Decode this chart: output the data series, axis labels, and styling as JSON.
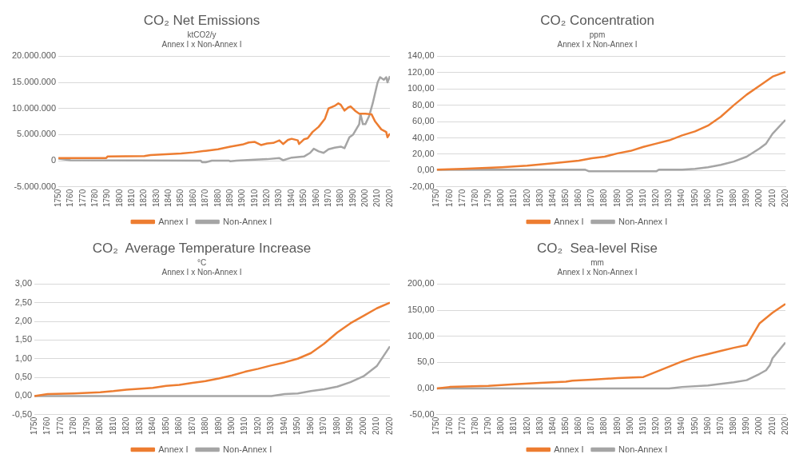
{
  "chart_data": [
    {
      "type": "line",
      "title": "CO₂ Net Emissions",
      "subtitle": "ktCO2/y",
      "annotations": [
        "Annex I x Non-Annex I"
      ],
      "xlim": [
        1750,
        2020
      ],
      "xticks": [
        1750,
        1760,
        1770,
        1780,
        1790,
        1800,
        1810,
        1820,
        1830,
        1840,
        1850,
        1860,
        1870,
        1880,
        1890,
        1900,
        1910,
        1920,
        1930,
        1940,
        1950,
        1960,
        1970,
        1980,
        1990,
        2000,
        2010,
        2020
      ],
      "ylim": [
        -5000000,
        20000000
      ],
      "yticks": [
        {
          "value": -5000000,
          "label": "-5.000.000"
        },
        0,
        {
          "value": 5000000,
          "label": "5.000.000"
        },
        {
          "value": 10000000,
          "label": "10.000.000"
        },
        {
          "value": 15000000,
          "label": "15.000.000"
        },
        {
          "value": 20000000,
          "label": "20.000.000"
        }
      ],
      "grid": "y",
      "legend": "bottom",
      "marker": "none",
      "line_style": "solid",
      "series": [
        {
          "name": "Annex I",
          "color": "#ed7d31",
          "x": [
            1750,
            1789,
            1790,
            1820,
            1825,
            1850,
            1860,
            1870,
            1880,
            1890,
            1900,
            1905,
            1910,
            1915,
            1920,
            1925,
            1930,
            1933,
            1937,
            1940,
            1945,
            1946,
            1950,
            1953,
            1957,
            1962,
            1967,
            1970,
            1975,
            1978,
            1980,
            1983,
            1986,
            1988,
            1992,
            1995,
            2000,
            2005,
            2008,
            2013,
            2017,
            2018,
            2020
          ],
          "values": [
            500000,
            500000,
            800000,
            900000,
            1100000,
            1400000,
            1600000,
            1900000,
            2200000,
            2700000,
            3100000,
            3500000,
            3600000,
            3000000,
            3300000,
            3400000,
            3900000,
            3200000,
            4000000,
            4200000,
            3900000,
            3200000,
            4100000,
            4300000,
            5500000,
            6500000,
            8000000,
            10000000,
            10500000,
            11000000,
            10700000,
            9600000,
            10200000,
            10400000,
            9500000,
            9000000,
            9000000,
            8900000,
            7500000,
            6000000,
            5500000,
            4500000,
            5200000
          ]
        },
        {
          "name": "Non-Annex I",
          "color": "#a5a5a5",
          "x": [
            1750,
            1760,
            1866,
            1867,
            1870,
            1875,
            1889,
            1890,
            1895,
            1910,
            1920,
            1930,
            1933,
            1940,
            1950,
            1955,
            1958,
            1962,
            1966,
            1970,
            1975,
            1980,
            1983,
            1987,
            1990,
            1995,
            1996,
            1998,
            2000,
            2003,
            2006,
            2010,
            2012,
            2015,
            2017,
            2018,
            2020
          ],
          "values": [
            400000,
            100000,
            0,
            -300000,
            -300000,
            0,
            0,
            -100000,
            0,
            200000,
            300000,
            500000,
            100000,
            600000,
            800000,
            1500000,
            2300000,
            1800000,
            1500000,
            2200000,
            2500000,
            2700000,
            2400000,
            4500000,
            5000000,
            7000000,
            9000000,
            7000000,
            7000000,
            8500000,
            11000000,
            15000000,
            16000000,
            15500000,
            16000000,
            15000000,
            16200000
          ]
        }
      ]
    },
    {
      "type": "line",
      "title": "CO₂ Concentration",
      "subtitle": "ppm",
      "annotations": [
        "Annex I x Non-Annex I"
      ],
      "xlim": [
        1750,
        2020
      ],
      "xticks": [
        1750,
        1760,
        1770,
        1780,
        1790,
        1800,
        1810,
        1820,
        1830,
        1840,
        1850,
        1860,
        1870,
        1880,
        1890,
        1900,
        1910,
        1920,
        1930,
        1940,
        1950,
        1960,
        1970,
        1980,
        1990,
        2000,
        2010,
        2020
      ],
      "ylim": [
        -20,
        140
      ],
      "yticks": [
        {
          "value": -20,
          "label": "-20,00"
        },
        {
          "value": 0,
          "label": "0,00"
        },
        {
          "value": 20,
          "label": "20,00"
        },
        {
          "value": 40,
          "label": "40,00"
        },
        {
          "value": 60,
          "label": "60,00"
        },
        {
          "value": 80,
          "label": "80,00"
        },
        {
          "value": 100,
          "label": "100,00"
        },
        {
          "value": 120,
          "label": "120,00"
        },
        {
          "value": 140,
          "label": "140,00"
        }
      ],
      "grid": "y",
      "legend": "bottom",
      "marker": "none",
      "line_style": "solid",
      "series": [
        {
          "name": "Annex I",
          "color": "#ed7d31",
          "x": [
            1750,
            1770,
            1800,
            1820,
            1840,
            1860,
            1870,
            1880,
            1890,
            1900,
            1910,
            1920,
            1930,
            1940,
            1950,
            1960,
            1970,
            1980,
            1990,
            2000,
            2010,
            2020
          ],
          "values": [
            1,
            2,
            4,
            6,
            9,
            12,
            15,
            17,
            21,
            24,
            29,
            33,
            37,
            43,
            48,
            55,
            66,
            80,
            93,
            104,
            115,
            121
          ]
        },
        {
          "name": "Non-Annex I",
          "color": "#a5a5a5",
          "x": [
            1750,
            1865,
            1868,
            1920,
            1922,
            1940,
            1950,
            1960,
            1970,
            1980,
            1990,
            2000,
            2005,
            2010,
            2020
          ],
          "values": [
            1,
            1,
            -1,
            -1,
            1,
            1,
            2,
            4,
            7,
            11,
            17,
            27,
            33,
            45,
            62
          ]
        }
      ]
    },
    {
      "type": "line",
      "title": "CO₂  Average Temperature Increase",
      "subtitle": "°C",
      "annotations": [
        "Annex I x Non-Annex I"
      ],
      "xlim": [
        1750,
        2020
      ],
      "xticks": [
        1750,
        1760,
        1770,
        1780,
        1790,
        1800,
        1810,
        1820,
        1830,
        1840,
        1850,
        1860,
        1870,
        1880,
        1890,
        1900,
        1910,
        1920,
        1930,
        1940,
        1950,
        1960,
        1970,
        1980,
        1990,
        2000,
        2010,
        2020
      ],
      "ylim": [
        -0.5,
        3
      ],
      "yticks": [
        {
          "value": -0.5,
          "label": "-0,50"
        },
        {
          "value": 0,
          "label": "0,00"
        },
        {
          "value": 0.5,
          "label": "0,50"
        },
        {
          "value": 1,
          "label": "1,00"
        },
        {
          "value": 1.5,
          "label": "1,50"
        },
        {
          "value": 2,
          "label": "2,00"
        },
        {
          "value": 2.5,
          "label": "2,50"
        },
        {
          "value": 3,
          "label": "3,00"
        }
      ],
      "grid": "y",
      "legend": "bottom",
      "marker": "none",
      "line_style": "solid",
      "series": [
        {
          "name": "Annex I",
          "color": "#ed7d31",
          "x": [
            1750,
            1760,
            1780,
            1800,
            1810,
            1820,
            1840,
            1850,
            1860,
            1870,
            1880,
            1890,
            1900,
            1910,
            1920,
            1930,
            1940,
            1950,
            1960,
            1970,
            1980,
            1990,
            2000,
            2010,
            2020
          ],
          "values": [
            0,
            0.05,
            0.07,
            0.1,
            0.13,
            0.17,
            0.22,
            0.27,
            0.3,
            0.35,
            0.4,
            0.47,
            0.55,
            0.65,
            0.73,
            0.82,
            0.9,
            1.0,
            1.15,
            1.4,
            1.7,
            1.95,
            2.15,
            2.35,
            2.5
          ]
        },
        {
          "name": "Non-Annex I",
          "color": "#a5a5a5",
          "x": [
            1750,
            1930,
            1940,
            1950,
            1960,
            1970,
            1980,
            1990,
            2000,
            2010,
            2020
          ],
          "values": [
            0,
            0,
            0.05,
            0.07,
            0.13,
            0.18,
            0.25,
            0.37,
            0.53,
            0.8,
            1.33
          ]
        }
      ]
    },
    {
      "type": "line",
      "title": "CO₂  Sea-level Rise",
      "subtitle": "mm",
      "annotations": [
        "Annex I x Non-Annex I"
      ],
      "xlim": [
        1750,
        2020
      ],
      "xticks": [
        1750,
        1760,
        1770,
        1780,
        1790,
        1800,
        1810,
        1820,
        1830,
        1840,
        1850,
        1860,
        1870,
        1880,
        1890,
        1900,
        1910,
        1920,
        1930,
        1940,
        1950,
        1960,
        1970,
        1980,
        1990,
        2000,
        2010,
        2020
      ],
      "ylim": [
        -50,
        200
      ],
      "yticks": [
        {
          "value": -50,
          "label": "-50,00"
        },
        {
          "value": 0,
          "label": "0,00"
        },
        {
          "value": 50,
          "label": "50,0"
        },
        {
          "value": 100,
          "label": "100,00"
        },
        {
          "value": 150,
          "label": "150,00"
        },
        {
          "value": 200,
          "label": "200,00"
        }
      ],
      "grid": "y",
      "legend": "bottom",
      "marker": "none",
      "line_style": "solid",
      "series": [
        {
          "name": "Annex I",
          "color": "#ed7d31",
          "x": [
            1750,
            1760,
            1790,
            1810,
            1830,
            1850,
            1855,
            1870,
            1890,
            1910,
            1920,
            1930,
            1940,
            1950,
            1960,
            1970,
            1980,
            1990,
            2000,
            2010,
            2020
          ],
          "values": [
            0,
            3,
            5,
            8,
            11,
            13,
            15,
            17,
            20,
            22,
            32,
            42,
            52,
            60,
            66,
            72,
            78,
            83,
            125,
            145,
            162
          ]
        },
        {
          "name": "Non-Annex I",
          "color": "#a5a5a5",
          "x": [
            1750,
            1930,
            1940,
            1960,
            1970,
            1980,
            1990,
            2000,
            2005,
            2008,
            2010,
            2020
          ],
          "values": [
            0,
            0,
            3,
            6,
            9,
            12,
            16,
            28,
            35,
            45,
            58,
            88
          ]
        }
      ]
    }
  ]
}
